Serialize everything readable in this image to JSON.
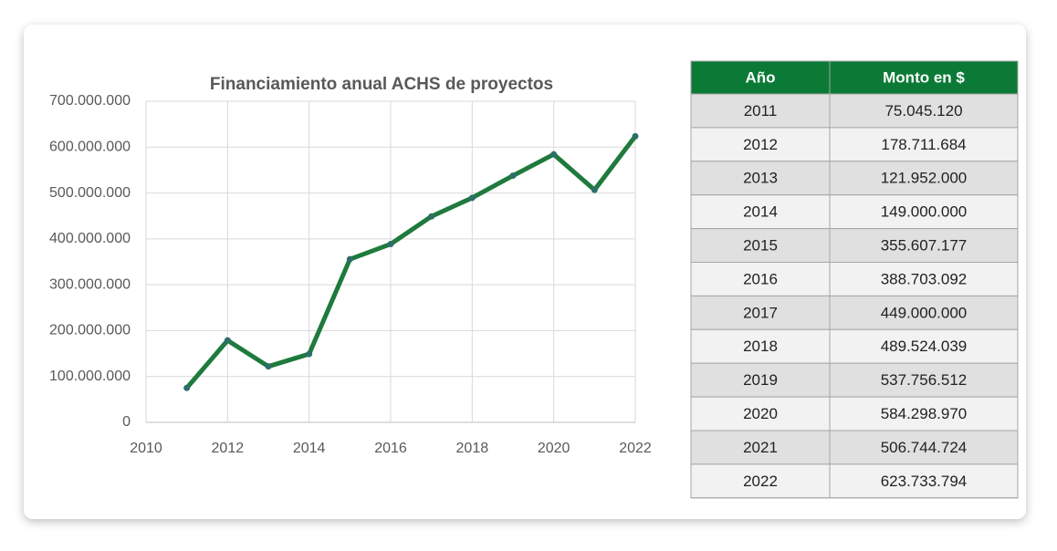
{
  "chart_data": {
    "type": "line",
    "title": "Financiamiento anual ACHS de proyectos",
    "x": [
      2011,
      2012,
      2013,
      2014,
      2015,
      2016,
      2017,
      2018,
      2019,
      2020,
      2021,
      2022
    ],
    "series": [
      {
        "color": "#1f7a3d",
        "values": [
          75045120,
          178711684,
          121952000,
          149000000,
          355607177,
          388703092,
          449000000,
          489524039,
          537756512,
          584298970,
          506744724,
          623733794
        ]
      }
    ],
    "xlim": [
      2010,
      2022
    ],
    "xticks": [
      2010,
      2012,
      2014,
      2016,
      2018,
      2020,
      2022
    ],
    "ylim": [
      0,
      700000000
    ],
    "yticks": [
      0,
      {
        "value": 100000000,
        "label": "100.000.000"
      },
      {
        "value": 200000000,
        "label": "200.000.000"
      },
      {
        "value": 300000000,
        "label": "300.000.000"
      },
      {
        "value": 400000000,
        "label": "400.000.000"
      },
      {
        "value": 500000000,
        "label": "500.000.000"
      },
      {
        "value": 600000000,
        "label": "600.000.000"
      },
      {
        "value": 700000000,
        "label": "700.000.000"
      }
    ],
    "grid": true
  },
  "table": {
    "header": [
      "Año",
      "Monto en $"
    ],
    "rows": [
      [
        "2011",
        "75.045.120"
      ],
      [
        "2012",
        "178.711.684"
      ],
      [
        "2013",
        "121.952.000"
      ],
      [
        "2014",
        "149.000.000"
      ],
      [
        "2015",
        "355.607.177"
      ],
      [
        "2016",
        "388.703.092"
      ],
      [
        "2017",
        "449.000.000"
      ],
      [
        "2018",
        "489.524.039"
      ],
      [
        "2019",
        "537.756.512"
      ],
      [
        "2020",
        "584.298.970"
      ],
      [
        "2021",
        "506.744.724"
      ],
      [
        "2022",
        "623.733.794"
      ]
    ]
  }
}
